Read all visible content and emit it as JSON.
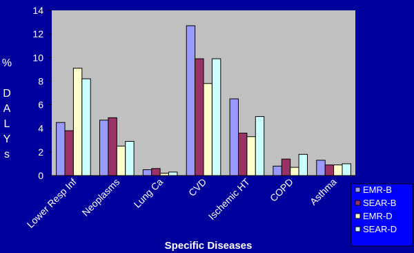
{
  "chart_data": {
    "type": "bar",
    "title": "",
    "xlabel": "Specific Diseases",
    "ylabel_chars": [
      "%",
      "",
      "D",
      "A",
      "L",
      "Y",
      "s"
    ],
    "ylim": [
      0,
      14
    ],
    "yticks": [
      "0",
      "2",
      "4",
      "6",
      "8",
      "10",
      "12",
      "14"
    ],
    "grid": false,
    "legend_position": "bottom-right",
    "categories": [
      "Lower Resp Inf",
      "Neoplasms",
      "Lung Ca",
      "CVD",
      "Ischemic HT",
      "COPD",
      "Asthma"
    ],
    "series": [
      {
        "name": "EMR-B",
        "color": "#9999ff",
        "values": [
          4.5,
          4.7,
          0.5,
          12.7,
          6.5,
          0.8,
          1.3
        ]
      },
      {
        "name": "SEAR-B",
        "color": "#993366",
        "values": [
          3.8,
          4.9,
          0.6,
          9.9,
          3.6,
          1.4,
          0.9
        ]
      },
      {
        "name": "EMR-D",
        "color": "#ffffcc",
        "values": [
          9.1,
          2.5,
          0.2,
          7.8,
          3.3,
          0.7,
          0.9
        ]
      },
      {
        "name": "SEAR-D",
        "color": "#ccffff",
        "values": [
          8.2,
          2.9,
          0.3,
          9.9,
          5.0,
          1.8,
          1.0
        ]
      }
    ],
    "colors": {
      "background": "#00009c",
      "plot_area": "#c0c0c0",
      "text": "#ffffff",
      "axis": "#000000"
    }
  }
}
